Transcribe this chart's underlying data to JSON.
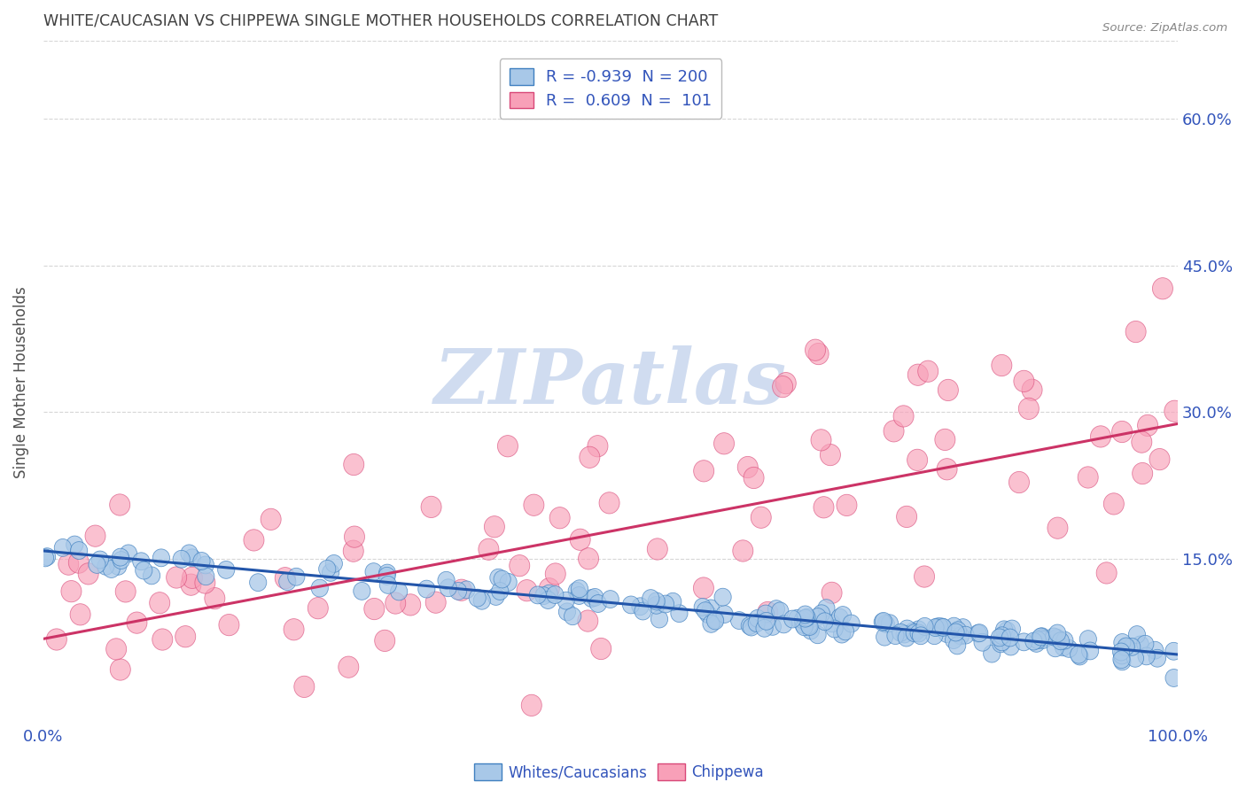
{
  "title": "WHITE/CAUCASIAN VS CHIPPEWA SINGLE MOTHER HOUSEHOLDS CORRELATION CHART",
  "source": "Source: ZipAtlas.com",
  "ylabel": "Single Mother Households",
  "yticks": [
    "15.0%",
    "30.0%",
    "45.0%",
    "60.0%"
  ],
  "ytick_vals": [
    0.15,
    0.3,
    0.45,
    0.6
  ],
  "xlim": [
    0.0,
    1.0
  ],
  "ylim": [
    -0.02,
    0.68
  ],
  "legend_label_blue": "R = -0.939  N = 200",
  "legend_label_pink": "R =  0.609  N =  101",
  "blue_scatter_color": "#a8c8e8",
  "blue_scatter_edge": "#4080c0",
  "pink_scatter_color": "#f8a0b8",
  "pink_scatter_edge": "#d84878",
  "blue_line_color": "#2255aa",
  "pink_line_color": "#cc3366",
  "background_color": "#ffffff",
  "watermark_color": "#d0dcf0",
  "grid_color": "#cccccc",
  "title_color": "#404040",
  "axis_label_color": "#505050",
  "tick_color": "#3355bb",
  "source_color": "#888888",
  "blue_line_start_x": 0.0,
  "blue_line_start_y": 0.158,
  "blue_line_end_x": 1.0,
  "blue_line_end_y": 0.052,
  "pink_line_start_x": 0.0,
  "pink_line_start_y": 0.068,
  "pink_line_end_x": 1.0,
  "pink_line_end_y": 0.288,
  "bottom_legend_blue": "Whites/Caucasians",
  "bottom_legend_pink": "Chippewa"
}
